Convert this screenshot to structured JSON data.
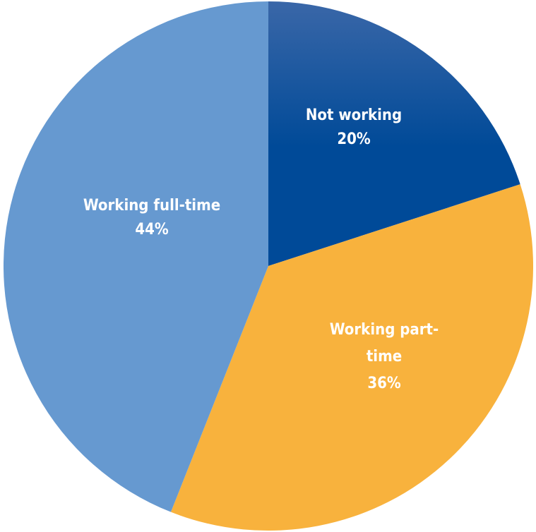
{
  "chart_data": {
    "type": "pie",
    "title": "",
    "slices": [
      {
        "label_lines": [
          "Not working"
        ],
        "value": 20,
        "value_label": "20%",
        "color": "#004a98",
        "gradient_top": "#3a67a8"
      },
      {
        "label_lines": [
          "Working part-",
          "time"
        ],
        "value": 36,
        "value_label": "36%",
        "color": "#f8b23d"
      },
      {
        "label_lines": [
          "Working full-time"
        ],
        "value": 44,
        "value_label": "44%",
        "color": "#6699d0"
      }
    ],
    "start_angle": "12 o'clock",
    "direction": "clockwise",
    "legend": "none"
  }
}
